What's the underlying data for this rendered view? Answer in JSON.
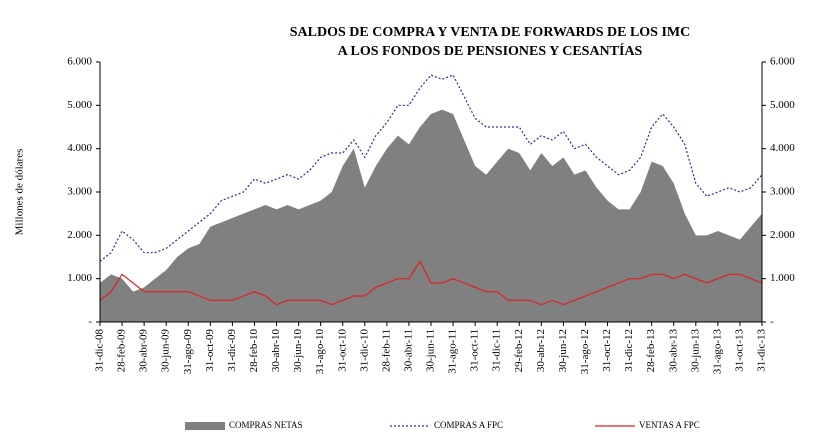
{
  "chart_data": {
    "type": "line",
    "title": "SALDOS DE COMPRA Y VENTA DE FORWARDS DE LOS IMC",
    "subtitle": "A LOS FONDOS DE PENSIONES Y CESANTÍAS",
    "y_label": "Millones de dólares",
    "categories": [
      "31-dic-08",
      null,
      "28-feb-09",
      null,
      "30-abr-09",
      null,
      "30-jun-09",
      null,
      "31-ago-09",
      null,
      "31-oct-09",
      null,
      "31-dic-09",
      null,
      "28-feb-10",
      null,
      "30-abr-10",
      null,
      "30-jun-10",
      null,
      "31-ago-10",
      null,
      "31-oct-10",
      null,
      "31-dic-10",
      null,
      "28-feb-11",
      null,
      "30-abr-11",
      null,
      "30-jun-11",
      null,
      "31-ago-11",
      null,
      "31-oct-11",
      null,
      "31-dic-11",
      null,
      "29-feb-12",
      null,
      "30-abr-12",
      null,
      "30-jun-12",
      null,
      "31-ago-12",
      null,
      "31-oct-12",
      null,
      "31-dic-12",
      null,
      "28-feb-13",
      null,
      "30-abr-13",
      null,
      "30-jun-13",
      null,
      "31-ago-13",
      null,
      "31-oct-13",
      null,
      "31-dic-13"
    ],
    "series": [
      {
        "name": "COMPRAS NETAS",
        "type": "area",
        "color": "#808080",
        "values": [
          900,
          1100,
          1000,
          700,
          800,
          1000,
          1200,
          1500,
          1700,
          1800,
          2200,
          2300,
          2400,
          2500,
          2600,
          2700,
          2600,
          2700,
          2600,
          2700,
          2800,
          3000,
          3600,
          4000,
          3100,
          3600,
          4000,
          4300,
          4100,
          4500,
          4800,
          4900,
          4800,
          4200,
          3600,
          3400,
          3700,
          4000,
          3900,
          3500,
          3900,
          3600,
          3800,
          3400,
          3500,
          3100,
          2800,
          2600,
          2600,
          3000,
          3700,
          3600,
          3200,
          2500,
          2000,
          2000,
          2100,
          2000,
          1900,
          2200,
          2500
        ]
      },
      {
        "name": "COMPRAS A FPC",
        "type": "line",
        "dashed": true,
        "color": "#2a2aa0",
        "values": [
          1400,
          1600,
          2100,
          1900,
          1600,
          1600,
          1700,
          1900,
          2100,
          2300,
          2500,
          2800,
          2900,
          3000,
          3300,
          3200,
          3300,
          3400,
          3300,
          3500,
          3800,
          3900,
          3900,
          4200,
          3800,
          4300,
          4600,
          5000,
          5000,
          5400,
          5700,
          5600,
          5700,
          5200,
          4700,
          4500,
          4500,
          4500,
          4500,
          4100,
          4300,
          4200,
          4400,
          4000,
          4100,
          3800,
          3600,
          3400,
          3500,
          3800,
          4500,
          4800,
          4500,
          4100,
          3200,
          2900,
          3000,
          3100,
          3000,
          3100,
          3400
        ]
      },
      {
        "name": "VENTAS A FPC",
        "type": "line",
        "dashed": false,
        "color": "#e02020",
        "values": [
          500,
          700,
          1100,
          900,
          700,
          700,
          700,
          700,
          700,
          600,
          500,
          500,
          500,
          600,
          700,
          600,
          400,
          500,
          500,
          500,
          500,
          400,
          500,
          600,
          600,
          800,
          900,
          1000,
          1000,
          1400,
          900,
          900,
          1000,
          900,
          800,
          700,
          700,
          500,
          500,
          500,
          400,
          500,
          400,
          500,
          600,
          700,
          800,
          900,
          1000,
          1000,
          1100,
          1100,
          1000,
          1100,
          1000,
          900,
          1000,
          1100,
          1100,
          1000,
          900
        ]
      }
    ],
    "ylim": [
      0,
      6000
    ],
    "yticks": [
      {
        "value": 0,
        "label": "-"
      },
      {
        "value": 1000,
        "label": "1.000"
      },
      {
        "value": 2000,
        "label": "2.000"
      },
      {
        "value": 3000,
        "label": "3.000"
      },
      {
        "value": 4000,
        "label": "4.000"
      },
      {
        "value": 5000,
        "label": "5.000"
      },
      {
        "value": 6000,
        "label": "6.000"
      }
    ],
    "y2lim": [
      0,
      6000
    ],
    "y2ticks": [
      {
        "value": 0,
        "label": "-"
      },
      {
        "value": 1000,
        "label": "1.000"
      },
      {
        "value": 2000,
        "label": "2.000"
      },
      {
        "value": 3000,
        "label": "3.000"
      },
      {
        "value": 4000,
        "label": "4.000"
      },
      {
        "value": 5000,
        "label": "5.000"
      },
      {
        "value": 6000,
        "label": "6.000"
      }
    ],
    "legend": "bottom"
  }
}
